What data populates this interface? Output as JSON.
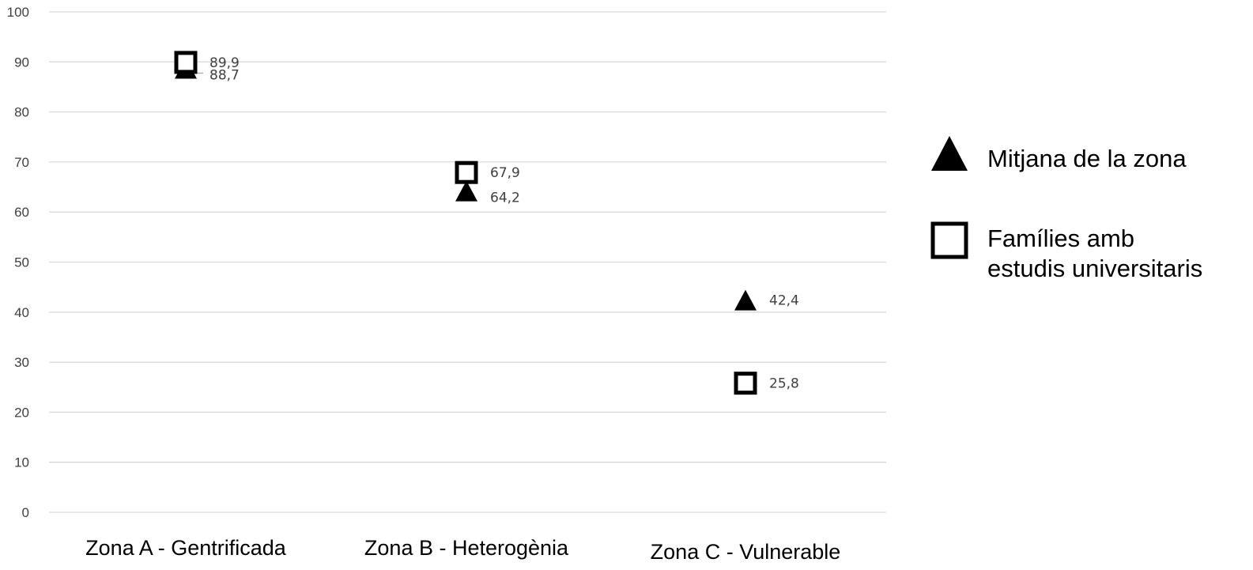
{
  "chart_data": {
    "type": "scatter",
    "title": "",
    "xlabel": "",
    "ylabel": "",
    "categories": [
      "Zona A - Gentrificada",
      "Zona B - Heterogènia",
      "Zona C - Vulnerable"
    ],
    "ylim": [
      0,
      100
    ],
    "yticks": [
      "0",
      "10",
      "20",
      "30",
      "40",
      "50",
      "60",
      "70",
      "80",
      "90",
      "100"
    ],
    "grid": true,
    "legend_position": "right",
    "series": [
      {
        "name": "Mitjana de la zona",
        "marker": "triangle",
        "color": "#000000",
        "values": [
          88.7,
          64.2,
          42.4
        ],
        "labels": [
          "88,7",
          "64,2",
          "42,4"
        ]
      },
      {
        "name": "Famílies amb estudis universitaris",
        "legend_lines": [
          "Famílies amb",
          "estudis universitaris"
        ],
        "marker": "square",
        "color": "#000000",
        "values": [
          89.9,
          67.9,
          25.8
        ],
        "labels": [
          "89,9",
          "67,9",
          "25,8"
        ]
      }
    ]
  }
}
